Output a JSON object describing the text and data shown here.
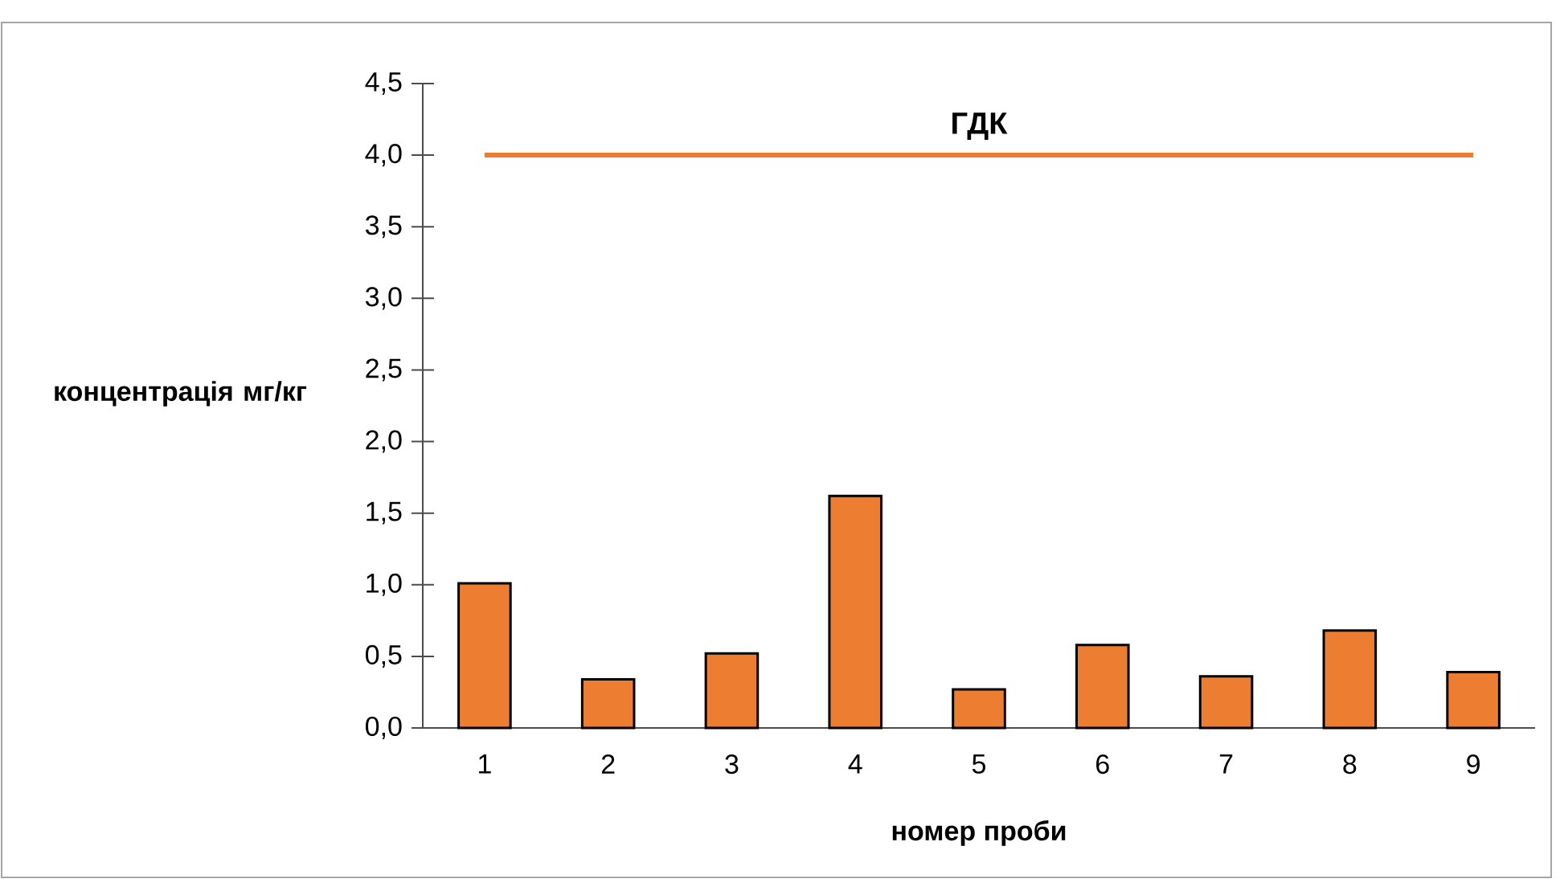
{
  "chart_data": {
    "type": "bar",
    "xlabel": "номер проби",
    "ylabel": "концентрація мг/кг",
    "categories": [
      "1",
      "2",
      "3",
      "4",
      "5",
      "6",
      "7",
      "8",
      "9"
    ],
    "values": [
      1.01,
      0.34,
      0.52,
      1.62,
      0.27,
      0.58,
      0.36,
      0.68,
      0.39
    ],
    "color": "#ed7d31",
    "ylim": [
      0,
      4.5
    ],
    "yticks": [
      {
        "value": 0,
        "label": "0,0"
      },
      {
        "value": 0.5,
        "label": "0,5"
      },
      {
        "value": 1,
        "label": "1,0"
      },
      {
        "value": 1.5,
        "label": "1,5"
      },
      {
        "value": 2,
        "label": "2,0"
      },
      {
        "value": 2.5,
        "label": "2,5"
      },
      {
        "value": 3,
        "label": "3,0"
      },
      {
        "value": 3.5,
        "label": "3,5"
      },
      {
        "value": 4,
        "label": "4,0"
      },
      {
        "value": 4.5,
        "label": "4,5"
      }
    ],
    "ref_lines": [
      {
        "axis": "y",
        "value": 4,
        "label": "ГДК",
        "color": "#ed7d31"
      }
    ],
    "grid": false
  }
}
